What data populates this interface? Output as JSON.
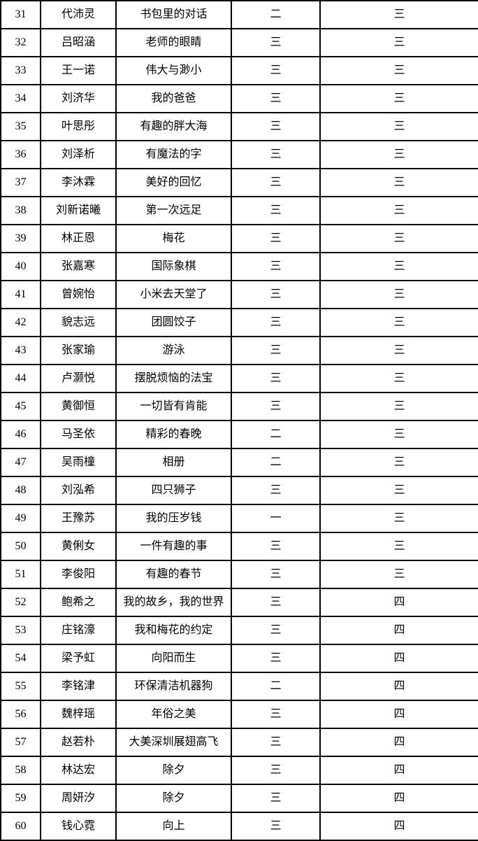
{
  "colors": {
    "background": "#ffffff",
    "border": "#000000",
    "text": "#000000"
  },
  "table": {
    "rows": [
      {
        "no": "31",
        "name": "代沛灵",
        "title": "书包里的对话",
        "value1": "二",
        "value2": "三"
      },
      {
        "no": "32",
        "name": "吕昭涵",
        "title": "老师的眼睛",
        "value1": "三",
        "value2": "三"
      },
      {
        "no": "33",
        "name": "王一诺",
        "title": "伟大与渺小",
        "value1": "三",
        "value2": "三"
      },
      {
        "no": "34",
        "name": "刘济华",
        "title": "我的爸爸",
        "value1": "三",
        "value2": "三"
      },
      {
        "no": "35",
        "name": "叶思彤",
        "title": "有趣的胖大海",
        "value1": "三",
        "value2": "三"
      },
      {
        "no": "36",
        "name": "刘泽析",
        "title": "有魔法的字",
        "value1": "三",
        "value2": "三"
      },
      {
        "no": "37",
        "name": "李沐霖",
        "title": "美好的回忆",
        "value1": "三",
        "value2": "三"
      },
      {
        "no": "38",
        "name": "刘新诺曦",
        "title": "第一次远足",
        "value1": "三",
        "value2": "三"
      },
      {
        "no": "39",
        "name": "林正恩",
        "title": "梅花",
        "value1": "三",
        "value2": "三"
      },
      {
        "no": "40",
        "name": "张嘉寒",
        "title": "国际象棋",
        "value1": "三",
        "value2": "三"
      },
      {
        "no": "41",
        "name": "曾婉怡",
        "title": "小米去天堂了",
        "value1": "三",
        "value2": "三"
      },
      {
        "no": "42",
        "name": "貌志远",
        "title": "团圆饺子",
        "value1": "三",
        "value2": "三"
      },
      {
        "no": "43",
        "name": "张家瑜",
        "title": "游泳",
        "value1": "三",
        "value2": "三"
      },
      {
        "no": "44",
        "name": "卢灏悦",
        "title": "摆脱烦恼的法宝",
        "value1": "三",
        "value2": "三"
      },
      {
        "no": "45",
        "name": "黄御恒",
        "title": "一切皆有肯能",
        "value1": "三",
        "value2": "三"
      },
      {
        "no": "46",
        "name": "马圣依",
        "title": "精彩的春晚",
        "value1": "二",
        "value2": "三"
      },
      {
        "no": "47",
        "name": "吴雨橦",
        "title": "相册",
        "value1": "二",
        "value2": "三"
      },
      {
        "no": "48",
        "name": "刘泓希",
        "title": "四只狮子",
        "value1": "三",
        "value2": "三"
      },
      {
        "no": "49",
        "name": "王豫苏",
        "title": "我的压岁钱",
        "value1": "一",
        "value2": "三"
      },
      {
        "no": "50",
        "name": "黄俐女",
        "title": "一件有趣的事",
        "value1": "三",
        "value2": "三"
      },
      {
        "no": "51",
        "name": "李俊阳",
        "title": "有趣的春节",
        "value1": "三",
        "value2": "三"
      },
      {
        "no": "52",
        "name": "鲍希之",
        "title": "我的故乡，我的世界",
        "value1": "三",
        "value2": "四"
      },
      {
        "no": "53",
        "name": "庄铭濠",
        "title": "我和梅花的约定",
        "value1": "三",
        "value2": "四"
      },
      {
        "no": "54",
        "name": "梁予虹",
        "title": "向阳而生",
        "value1": "三",
        "value2": "四"
      },
      {
        "no": "55",
        "name": "李铭津",
        "title": "环保清洁机器狗",
        "value1": "二",
        "value2": "四"
      },
      {
        "no": "56",
        "name": "魏梓瑶",
        "title": "年俗之美",
        "value1": "三",
        "value2": "四"
      },
      {
        "no": "57",
        "name": "赵若朴",
        "title": "大美深圳展翅高飞",
        "value1": "三",
        "value2": "四"
      },
      {
        "no": "58",
        "name": "林达宏",
        "title": "除夕",
        "value1": "三",
        "value2": "四"
      },
      {
        "no": "59",
        "name": "周妍汐",
        "title": "除夕",
        "value1": "三",
        "value2": "四"
      },
      {
        "no": "60",
        "name": "钱心霓",
        "title": "向上",
        "value1": "三",
        "value2": "四"
      }
    ]
  }
}
